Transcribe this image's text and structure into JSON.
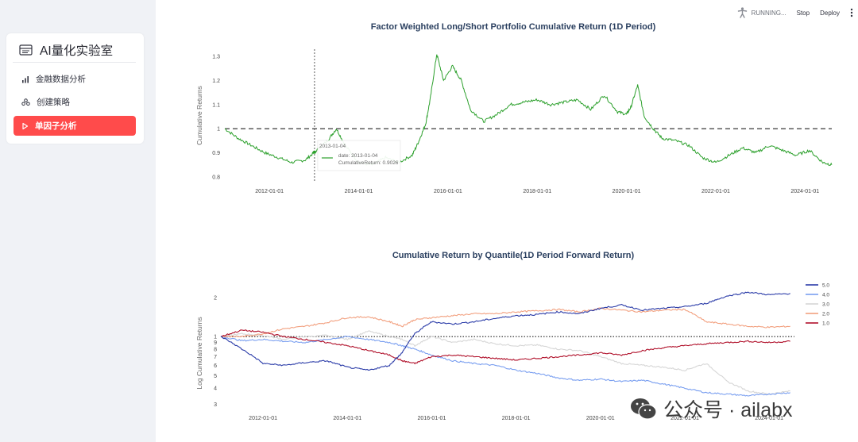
{
  "sidebar": {
    "title": "AI量化实验室",
    "title_icon": "list-icon",
    "items": [
      {
        "label": "金融数据分析",
        "icon": "bar-chart-icon",
        "active": false
      },
      {
        "label": "创建策略",
        "icon": "people-icon",
        "active": false
      },
      {
        "label": "单因子分析",
        "icon": "play-icon",
        "active": true
      }
    ]
  },
  "topbar": {
    "status": "RUNNING...",
    "stop_label": "Stop",
    "deploy_label": "Deploy",
    "menu_icon": "kebab-menu-icon"
  },
  "colors": {
    "accent": "#ff4b4b",
    "line_green": "#2ca02c",
    "q5": "#2a3ba8",
    "q4": "#7a9ff0",
    "q3": "#d6d6d6",
    "q2": "#f2a07f",
    "q1": "#b0102a"
  },
  "chart_data": [
    {
      "type": "line",
      "title": "Factor Weighted Long/Short Portfolio Cumulative Return (1D Period)",
      "xlabel": "",
      "ylabel": "Cumulative Returns",
      "x_ticks": [
        "2012-01-01",
        "2014-01-01",
        "2016-01-01",
        "2018-01-01",
        "2020-01-01",
        "2022-01-01",
        "2024-01-01"
      ],
      "y_ticks": [
        "0.8",
        "0.9",
        "1",
        "1.1",
        "1.2",
        "1.3"
      ],
      "ylim": [
        0.78,
        1.33
      ],
      "xlim": [
        2011.0,
        2024.6
      ],
      "reference_line": 1,
      "series": [
        {
          "name": "CumulativeReturn",
          "x": [
            2011.0,
            2011.3,
            2011.6,
            2011.9,
            2012.2,
            2012.5,
            2012.8,
            2013.01,
            2013.3,
            2013.5,
            2013.7,
            2014.0,
            2014.3,
            2014.6,
            2014.9,
            2015.2,
            2015.35,
            2015.5,
            2015.6,
            2015.75,
            2015.9,
            2016.1,
            2016.3,
            2016.5,
            2016.8,
            2017.1,
            2017.4,
            2017.7,
            2018.0,
            2018.3,
            2018.6,
            2018.9,
            2019.2,
            2019.5,
            2019.8,
            2020.0,
            2020.1,
            2020.25,
            2020.4,
            2020.6,
            2020.8,
            2021.1,
            2021.4,
            2021.7,
            2022.0,
            2022.3,
            2022.6,
            2022.9,
            2023.2,
            2023.5,
            2023.8,
            2024.1,
            2024.4,
            2024.6
          ],
          "values": [
            1.0,
            0.96,
            0.93,
            0.9,
            0.88,
            0.86,
            0.87,
            0.9026,
            0.95,
            1.0,
            0.93,
            0.86,
            0.85,
            0.88,
            0.86,
            0.89,
            0.95,
            1.02,
            1.12,
            1.31,
            1.2,
            1.26,
            1.2,
            1.08,
            1.03,
            1.06,
            1.1,
            1.11,
            1.12,
            1.1,
            1.11,
            1.12,
            1.08,
            1.14,
            1.07,
            1.06,
            1.09,
            1.18,
            1.05,
            1.0,
            0.96,
            0.95,
            0.93,
            0.88,
            0.86,
            0.89,
            0.92,
            0.9,
            0.93,
            0.91,
            0.89,
            0.91,
            0.86,
            0.85
          ]
        }
      ],
      "hover": {
        "date_header": "2013-01-04",
        "date_label": "date: 2013-01-04",
        "value_label": "CumulativeReturn: 0.9026"
      }
    },
    {
      "type": "line",
      "title": "Cumulative Return by Quantile(1D Period Forward Return)",
      "xlabel": "",
      "ylabel": "Log Cumulative Returns",
      "x_ticks": [
        "2012-01-01",
        "2014-01-01",
        "2016-01-01",
        "2018-01-01",
        "2020-01-01",
        "2022-01-01",
        "2024-01-01"
      ],
      "y_ticks": [
        "2",
        "1",
        "9",
        "8",
        "7",
        "6",
        "5",
        "4",
        "3"
      ],
      "y_tick_values": [
        2,
        1,
        0.9,
        0.8,
        0.7,
        0.6,
        0.5,
        0.4,
        0.3
      ],
      "ylim": [
        0.29,
        2.4
      ],
      "xlim": [
        2011.0,
        2024.6
      ],
      "reference_line": 1,
      "x": [
        2011.0,
        2011.5,
        2012.0,
        2012.5,
        2013.0,
        2013.5,
        2014.0,
        2014.5,
        2015.0,
        2015.3,
        2015.6,
        2016.0,
        2016.5,
        2017.0,
        2017.5,
        2018.0,
        2018.5,
        2019.0,
        2019.5,
        2020.0,
        2020.5,
        2021.0,
        2021.5,
        2022.0,
        2022.5,
        2023.0,
        2023.5,
        2024.0,
        2024.5
      ],
      "series": [
        {
          "name": "5.0",
          "values": [
            1.0,
            0.8,
            0.62,
            0.6,
            0.63,
            0.65,
            0.58,
            0.55,
            0.6,
            0.75,
            1.05,
            1.3,
            1.25,
            1.3,
            1.38,
            1.45,
            1.48,
            1.55,
            1.5,
            1.65,
            1.75,
            1.6,
            1.65,
            1.7,
            1.8,
            2.05,
            2.2,
            2.1,
            2.15
          ]
        },
        {
          "name": "4.0",
          "values": [
            1.0,
            0.93,
            0.95,
            0.92,
            0.9,
            0.95,
            1.0,
            0.95,
            0.9,
            0.85,
            0.8,
            0.72,
            0.65,
            0.62,
            0.6,
            0.55,
            0.52,
            0.48,
            0.46,
            0.47,
            0.45,
            0.46,
            0.43,
            0.4,
            0.37,
            0.36,
            0.35,
            0.36,
            0.37
          ]
        },
        {
          "name": "3.0",
          "values": [
            1.0,
            1.05,
            1.02,
            0.95,
            1.0,
            1.02,
            0.95,
            1.1,
            1.0,
            0.95,
            0.85,
            1.0,
            0.9,
            0.95,
            0.88,
            0.85,
            0.86,
            0.8,
            0.78,
            0.7,
            0.62,
            0.6,
            0.58,
            0.55,
            0.62,
            0.45,
            0.38,
            0.36,
            0.38
          ]
        },
        {
          "name": "2.0",
          "values": [
            1.0,
            1.0,
            1.05,
            1.15,
            1.2,
            1.28,
            1.4,
            1.42,
            1.3,
            1.2,
            1.35,
            1.4,
            1.45,
            1.5,
            1.5,
            1.55,
            1.58,
            1.62,
            1.55,
            1.65,
            1.6,
            1.55,
            1.6,
            1.62,
            1.3,
            1.25,
            1.2,
            1.18,
            1.2
          ]
        },
        {
          "name": "1.0",
          "values": [
            1.0,
            1.12,
            1.08,
            1.0,
            0.95,
            0.9,
            0.85,
            0.78,
            0.72,
            0.65,
            0.62,
            0.7,
            0.72,
            0.7,
            0.68,
            0.66,
            0.68,
            0.7,
            0.72,
            0.75,
            0.72,
            0.78,
            0.82,
            0.85,
            0.88,
            0.9,
            0.92,
            0.9,
            0.92
          ]
        }
      ]
    }
  ],
  "watermark": {
    "text": "公众号 · ailabx",
    "icon": "wechat-icon"
  }
}
